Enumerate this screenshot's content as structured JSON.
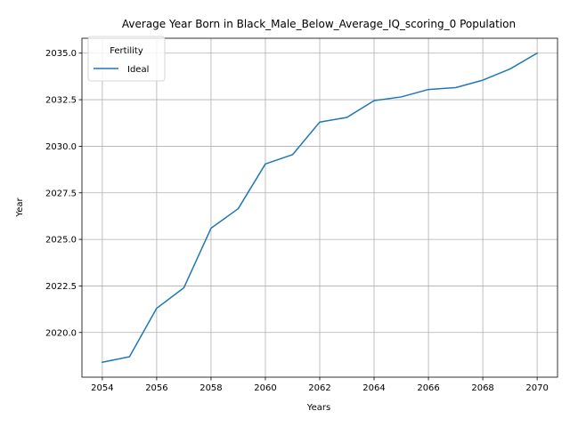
{
  "chart_data": {
    "type": "line",
    "title": "Average Year Born in Black_Male_Below_Average_IQ_scoring_0 Population",
    "xlabel": "Years",
    "ylabel": "Year",
    "xlim": [
      2053.25,
      2070.75
    ],
    "ylim": [
      2017.6,
      2035.8
    ],
    "xticks": [
      2054,
      2056,
      2058,
      2060,
      2062,
      2064,
      2066,
      2068,
      2070
    ],
    "yticks": [
      2020.0,
      2022.5,
      2025.0,
      2027.5,
      2030.0,
      2032.5,
      2035.0
    ],
    "xtick_labels": [
      "2054",
      "2056",
      "2058",
      "2060",
      "2062",
      "2064",
      "2066",
      "2068",
      "2070"
    ],
    "ytick_labels": [
      "2020.0",
      "2022.5",
      "2025.0",
      "2027.5",
      "2030.0",
      "2032.5",
      "2035.0"
    ],
    "grid": true,
    "legend": {
      "title": "Fertility",
      "placement": "top-left"
    },
    "series": [
      {
        "name": "Ideal",
        "color": "#1f77b4",
        "x": [
          2054,
          2055,
          2056,
          2057,
          2058,
          2059,
          2060,
          2061,
          2062,
          2063,
          2064,
          2065,
          2066,
          2067,
          2068,
          2069,
          2070
        ],
        "y": [
          2018.4,
          2018.7,
          2021.3,
          2022.4,
          2025.6,
          2026.65,
          2029.05,
          2029.55,
          2031.3,
          2031.55,
          2032.45,
          2032.65,
          2033.05,
          2033.15,
          2033.55,
          2034.15,
          2035.0
        ]
      }
    ]
  }
}
